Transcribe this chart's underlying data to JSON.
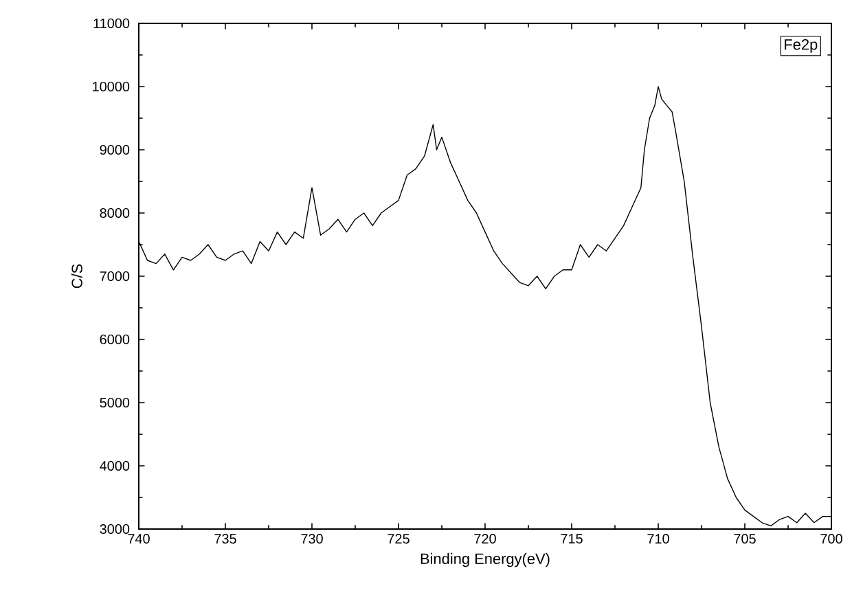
{
  "chart_data": {
    "type": "line",
    "xlabel": "Binding Energy(eV)",
    "ylabel": "C/S",
    "annotations": [
      "Fe2p"
    ],
    "xlim": [
      740,
      700
    ],
    "xticks": [
      740,
      735,
      730,
      725,
      720,
      715,
      710,
      705,
      700
    ],
    "ylim": [
      3000,
      11000
    ],
    "yticks": [
      3000,
      4000,
      5000,
      6000,
      7000,
      8000,
      9000,
      10000,
      11000
    ],
    "grid": false,
    "marker": "none",
    "line_style": "solid",
    "series": [
      {
        "color": "#000000",
        "x": [
          740,
          739.5,
          739,
          738.5,
          738,
          737.5,
          737,
          736.5,
          736,
          735.5,
          735,
          734.5,
          734,
          733.5,
          733,
          732.5,
          732,
          731.5,
          731,
          730.5,
          730,
          729.5,
          729,
          728.5,
          728,
          727.5,
          727,
          726.5,
          726,
          725.5,
          725,
          724.5,
          724,
          723.5,
          723.2,
          723,
          722.8,
          722.5,
          722,
          721.5,
          721,
          720.5,
          720,
          719.5,
          719,
          718.5,
          718,
          717.5,
          717,
          716.5,
          716,
          715.5,
          715,
          714.5,
          714,
          713.5,
          713,
          712.5,
          712,
          711.5,
          711,
          710.8,
          710.5,
          710.2,
          710,
          709.8,
          709.5,
          709.2,
          709,
          708.5,
          708,
          707.5,
          707,
          706.5,
          706,
          705.5,
          705,
          704.5,
          704,
          703.5,
          703,
          702.5,
          702,
          701.5,
          701,
          700.5,
          700
        ],
        "values": [
          7550,
          7250,
          7200,
          7350,
          7100,
          7300,
          7250,
          7350,
          7500,
          7300,
          7250,
          7350,
          7400,
          7200,
          7550,
          7400,
          7700,
          7500,
          7700,
          7600,
          8400,
          7650,
          7750,
          7900,
          7700,
          7900,
          8000,
          7800,
          8000,
          8100,
          8200,
          8600,
          8700,
          8900,
          9200,
          9400,
          9000,
          9200,
          8800,
          8500,
          8200,
          8000,
          7700,
          7400,
          7200,
          7050,
          6900,
          6850,
          7000,
          6800,
          7000,
          7100,
          7100,
          7500,
          7300,
          7500,
          7400,
          7600,
          7800,
          8100,
          8400,
          9000,
          9500,
          9700,
          10000,
          9800,
          9700,
          9600,
          9300,
          8500,
          7300,
          6200,
          5000,
          4300,
          3800,
          3500,
          3300,
          3200,
          3100,
          3050,
          3150,
          3200,
          3100,
          3250,
          3100,
          3200,
          3200
        ]
      }
    ]
  }
}
